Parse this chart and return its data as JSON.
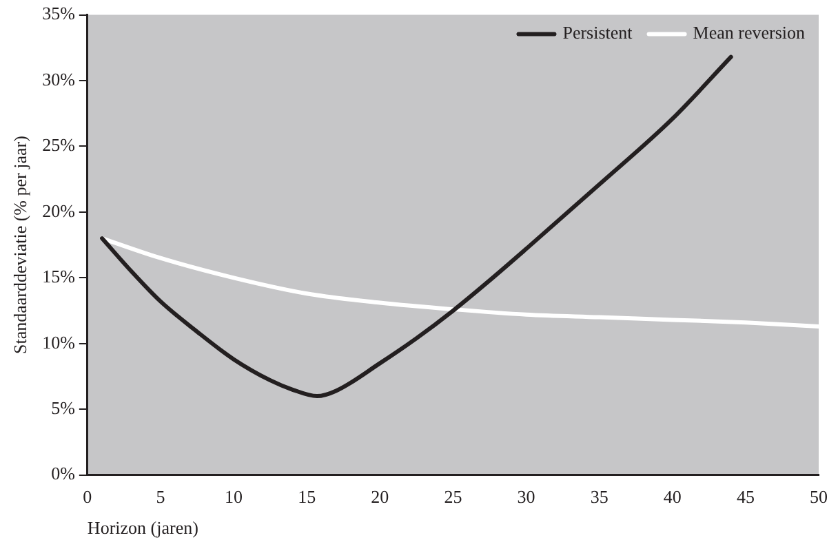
{
  "chart_data": {
    "type": "line",
    "xlabel": "Horizon (jaren)",
    "ylabel": "Standaarddeviatie (% per jaar)",
    "xlim": [
      0,
      50
    ],
    "xticks": [
      0,
      5,
      10,
      15,
      20,
      25,
      30,
      35,
      40,
      45,
      50
    ],
    "ylim": [
      0,
      35
    ],
    "yticks": [
      {
        "value": 0,
        "label": "0%"
      },
      {
        "value": 5,
        "label": "5%"
      },
      {
        "value": 10,
        "label": "10%"
      },
      {
        "value": 15,
        "label": "15%"
      },
      {
        "value": 20,
        "label": "20%"
      },
      {
        "value": 25,
        "label": "25%"
      },
      {
        "value": 30,
        "label": "30%"
      },
      {
        "value": 35,
        "label": "35%"
      }
    ],
    "grid": false,
    "legend": "top right",
    "marker": "none",
    "line_style": "solid",
    "series": [
      {
        "name": "Persistent",
        "color": "#231f20",
        "x": [
          1,
          3,
          5,
          7.5,
          10,
          12.5,
          14,
          15.7,
          17,
          20,
          22.5,
          25,
          27.5,
          30,
          35,
          40,
          44
        ],
        "values": [
          18,
          15.5,
          13.2,
          10.9,
          8.8,
          7.2,
          6.5,
          6,
          6.4,
          8.5,
          10.4,
          12.5,
          14.8,
          17.2,
          22.1,
          27.1,
          31.8
        ]
      },
      {
        "name": "Mean reversion",
        "color": "#ffffff",
        "x": [
          1,
          5,
          10,
          15,
          20,
          25,
          30,
          35,
          40,
          45,
          50
        ],
        "values": [
          18,
          16.5,
          15,
          13.8,
          13.1,
          12.6,
          12.2,
          12,
          11.8,
          11.6,
          11.3
        ]
      }
    ]
  }
}
